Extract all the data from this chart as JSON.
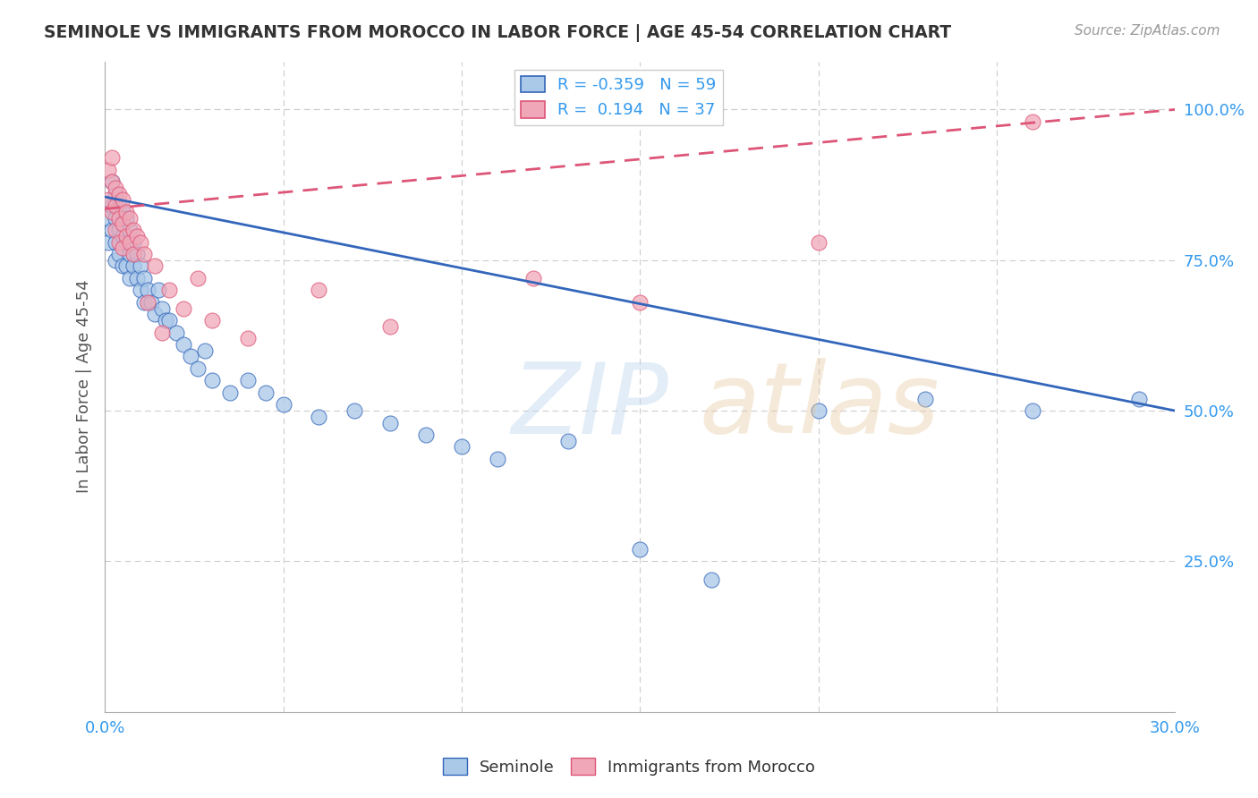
{
  "title": "SEMINOLE VS IMMIGRANTS FROM MOROCCO IN LABOR FORCE | AGE 45-54 CORRELATION CHART",
  "source": "Source: ZipAtlas.com",
  "ylabel": "In Labor Force | Age 45-54",
  "legend_label1": "Seminole",
  "legend_label2": "Immigrants from Morocco",
  "R1": -0.359,
  "N1": 59,
  "R2": 0.194,
  "N2": 37,
  "xlim": [
    0.0,
    0.3
  ],
  "ylim": [
    0.0,
    1.08
  ],
  "xticks": [
    0.0,
    0.05,
    0.1,
    0.15,
    0.2,
    0.25,
    0.3
  ],
  "xtick_labels": [
    "0.0%",
    "",
    "",
    "",
    "",
    "",
    "30.0%"
  ],
  "yticks": [
    0.25,
    0.5,
    0.75,
    1.0
  ],
  "ytick_labels": [
    "25.0%",
    "50.0%",
    "75.0%",
    "100.0%"
  ],
  "color_blue": "#aac8e8",
  "color_pink": "#f0a8b8",
  "trend_blue": "#3366bb",
  "trend_pink": "#dd5577",
  "seminole_x": [
    0.001,
    0.001,
    0.002,
    0.002,
    0.002,
    0.003,
    0.003,
    0.003,
    0.003,
    0.004,
    0.004,
    0.004,
    0.005,
    0.005,
    0.005,
    0.006,
    0.006,
    0.006,
    0.007,
    0.007,
    0.007,
    0.008,
    0.008,
    0.009,
    0.009,
    0.01,
    0.01,
    0.011,
    0.011,
    0.012,
    0.013,
    0.014,
    0.015,
    0.016,
    0.017,
    0.018,
    0.02,
    0.022,
    0.024,
    0.026,
    0.028,
    0.03,
    0.035,
    0.04,
    0.045,
    0.05,
    0.06,
    0.07,
    0.08,
    0.09,
    0.1,
    0.11,
    0.13,
    0.15,
    0.17,
    0.2,
    0.23,
    0.26,
    0.29
  ],
  "seminole_y": [
    0.82,
    0.78,
    0.88,
    0.84,
    0.8,
    0.86,
    0.82,
    0.78,
    0.75,
    0.84,
    0.8,
    0.76,
    0.83,
    0.79,
    0.74,
    0.82,
    0.78,
    0.74,
    0.8,
    0.76,
    0.72,
    0.78,
    0.74,
    0.76,
    0.72,
    0.74,
    0.7,
    0.72,
    0.68,
    0.7,
    0.68,
    0.66,
    0.7,
    0.67,
    0.65,
    0.65,
    0.63,
    0.61,
    0.59,
    0.57,
    0.6,
    0.55,
    0.53,
    0.55,
    0.53,
    0.51,
    0.49,
    0.5,
    0.48,
    0.46,
    0.44,
    0.42,
    0.45,
    0.27,
    0.22,
    0.5,
    0.52,
    0.5,
    0.52
  ],
  "morocco_x": [
    0.001,
    0.001,
    0.002,
    0.002,
    0.002,
    0.003,
    0.003,
    0.003,
    0.004,
    0.004,
    0.004,
    0.005,
    0.005,
    0.005,
    0.006,
    0.006,
    0.007,
    0.007,
    0.008,
    0.008,
    0.009,
    0.01,
    0.011,
    0.012,
    0.014,
    0.016,
    0.018,
    0.022,
    0.026,
    0.03,
    0.04,
    0.06,
    0.08,
    0.12,
    0.15,
    0.2,
    0.26
  ],
  "morocco_y": [
    0.9,
    0.85,
    0.92,
    0.88,
    0.83,
    0.87,
    0.84,
    0.8,
    0.86,
    0.82,
    0.78,
    0.85,
    0.81,
    0.77,
    0.83,
    0.79,
    0.82,
    0.78,
    0.8,
    0.76,
    0.79,
    0.78,
    0.76,
    0.68,
    0.74,
    0.63,
    0.7,
    0.67,
    0.72,
    0.65,
    0.62,
    0.7,
    0.64,
    0.72,
    0.68,
    0.78,
    0.98
  ],
  "blue_trend_x0": 0.0,
  "blue_trend_y0": 0.855,
  "blue_trend_x1": 0.3,
  "blue_trend_y1": 0.5,
  "pink_trend_x0": 0.0,
  "pink_trend_y0": 0.835,
  "pink_trend_x1": 0.3,
  "pink_trend_y1": 1.0
}
